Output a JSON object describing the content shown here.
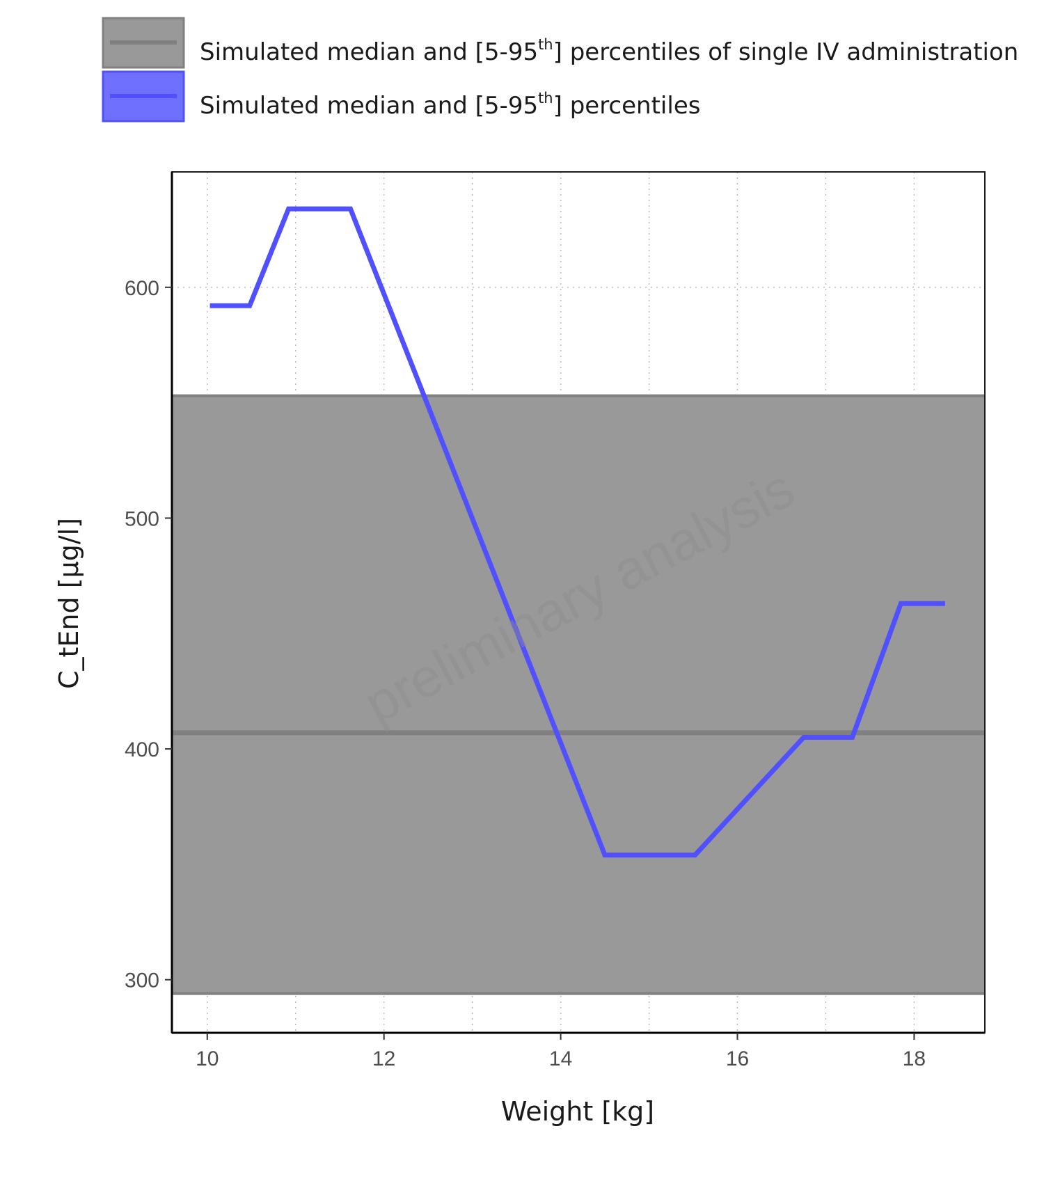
{
  "chart_data": {
    "type": "line",
    "xlabel": "Weight [kg]",
    "ylabel": "C_tEnd [µg/l]",
    "xlim": [
      9.6,
      18.8
    ],
    "ylim": [
      277,
      650
    ],
    "xticks": [
      10,
      12,
      14,
      16,
      18
    ],
    "yticks": [
      300,
      400,
      500,
      600
    ],
    "grid": true,
    "legend_position": "top",
    "watermark": "preliminary analysis",
    "legend": [
      {
        "key": "reference",
        "text": "Simulated median and [5-95",
        "sup": "th",
        "rest": "] percentiles of single IV administration"
      },
      {
        "key": "series",
        "text": "Simulated median and [5-95",
        "sup": "th",
        "rest": "] percentiles"
      }
    ],
    "reference_band": {
      "median": 407,
      "lower": 294,
      "upper": 553,
      "line_color": "#808080",
      "fill_color": "#999999"
    },
    "series": [
      {
        "color": "#5050ff",
        "x": [
          10.03,
          10.48,
          10.92,
          11.62,
          14.5,
          15.52,
          16.75,
          17.3,
          17.85,
          18.35
        ],
        "y": [
          592,
          592,
          634,
          634,
          354,
          354,
          405,
          405,
          463,
          463
        ]
      }
    ],
    "legend_colors": {
      "reference_fill": "#999999",
      "reference_border": "#808080",
      "series_fill": "#7070ff",
      "series_border": "#5050ff"
    }
  }
}
